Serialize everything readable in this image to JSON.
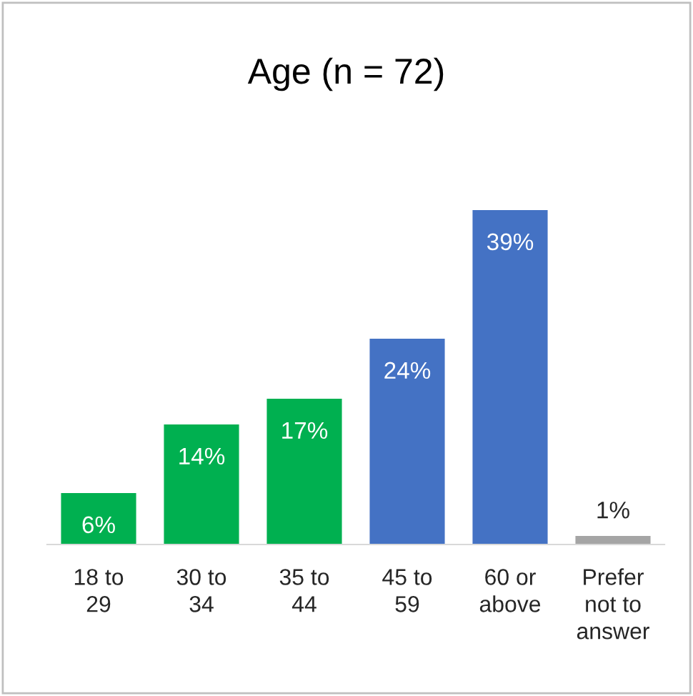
{
  "chart_data": {
    "type": "bar",
    "title": "Age (n = 72)",
    "categories": [
      "18 to\n29",
      "30 to\n34",
      "35 to\n44",
      "45 to\n59",
      "60 or\nabove",
      "Prefer\nnot to\nanswer"
    ],
    "values": [
      6,
      14,
      17,
      24,
      39,
      1
    ],
    "colors": [
      "#00b050",
      "#00b050",
      "#00b050",
      "#4472c4",
      "#4472c4",
      "#a5a5a5"
    ],
    "data_labels": true,
    "value_labels": [
      "6%",
      "14%",
      "17%",
      "24%",
      "39%",
      "1%"
    ],
    "grid": false,
    "legend": false
  }
}
